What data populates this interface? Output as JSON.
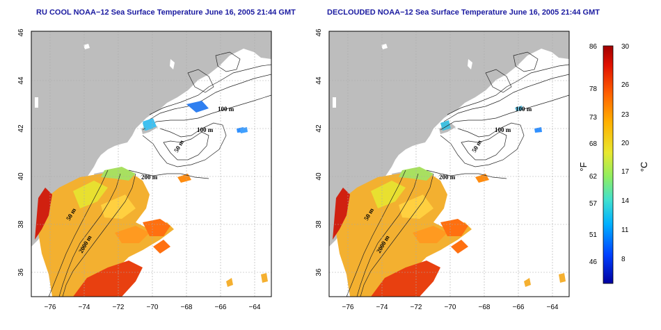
{
  "panels": [
    {
      "id": "left",
      "title": "RU COOL NOAA−12 Sea Surface Temperature June 16, 2005 21:44 GMT",
      "contour_labels": [
        "100 m",
        "100 m",
        "50 m",
        "200 m",
        "50 m",
        "2000 m"
      ]
    },
    {
      "id": "right",
      "title": "DECLOUDED NOAA−12 Sea Surface Temperature June 16, 2005 21:44 GMT",
      "contour_labels": [
        "100 m",
        "100 m",
        "50 m",
        "200 m",
        "50 m",
        "2000 m"
      ]
    }
  ],
  "axes": {
    "lon_ticks": [
      "−76",
      "−74",
      "−72",
      "−70",
      "−68",
      "−66",
      "−64"
    ],
    "lat_ticks": [
      "46",
      "44",
      "42",
      "40",
      "38",
      "36"
    ]
  },
  "colorbar": {
    "fahrenheit_ticks": [
      "86",
      "78",
      "73",
      "68",
      "62",
      "57",
      "51",
      "46"
    ],
    "celsius_ticks": [
      "30",
      "26",
      "23",
      "20",
      "17",
      "14",
      "11",
      "8"
    ],
    "fahrenheit_unit": "°F",
    "celsius_unit": "°C",
    "colors": [
      "#0000a0",
      "#0040ff",
      "#00b0ff",
      "#40e0d0",
      "#90ee60",
      "#e8e830",
      "#ffb000",
      "#ff6000",
      "#e01000",
      "#a00000"
    ]
  },
  "palette": {
    "land": "#bdbdbd",
    "water": "#ffffff",
    "grid": "#aaaaaa"
  }
}
